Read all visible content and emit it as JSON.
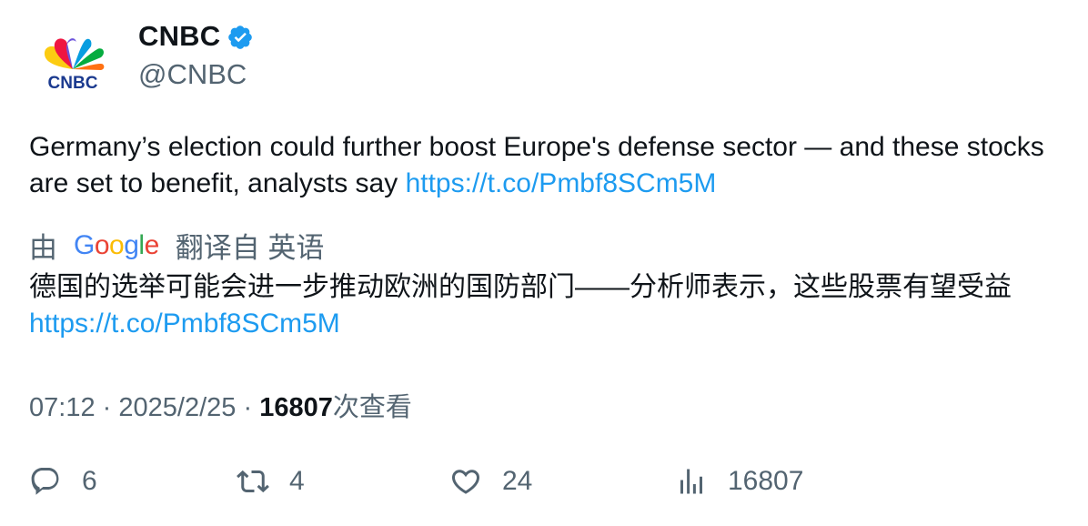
{
  "author": {
    "name": "CNBC",
    "handle": "@CNBC",
    "logo_text": "CNBC",
    "verified_icon": "verified-badge-icon",
    "verified_color": "#1d9bf0"
  },
  "tweet": {
    "text": "Germany’s election could further boost Europe's defense sector — and these stocks are set to benefit, analysts say",
    "link": "https://t.co/Pmbf8SCm5M"
  },
  "translation": {
    "prefix": "由",
    "provider": "Google",
    "suffix": "翻译自 英语",
    "text": "德国的选举可能会进一步推动欧洲的国防部门——分析师表示，这些股票有望受益",
    "link": "https://t.co/Pmbf8SCm5M"
  },
  "meta": {
    "time": "07:12",
    "separator": "·",
    "date": "2025/2/25",
    "views_count": "16807",
    "views_label": "次查看"
  },
  "actions": {
    "replies": "6",
    "reposts": "4",
    "likes": "24",
    "views": "16807"
  },
  "colors": {
    "link": "#1d9bf0",
    "secondary_text": "#536471",
    "primary_text": "#0f1419"
  }
}
